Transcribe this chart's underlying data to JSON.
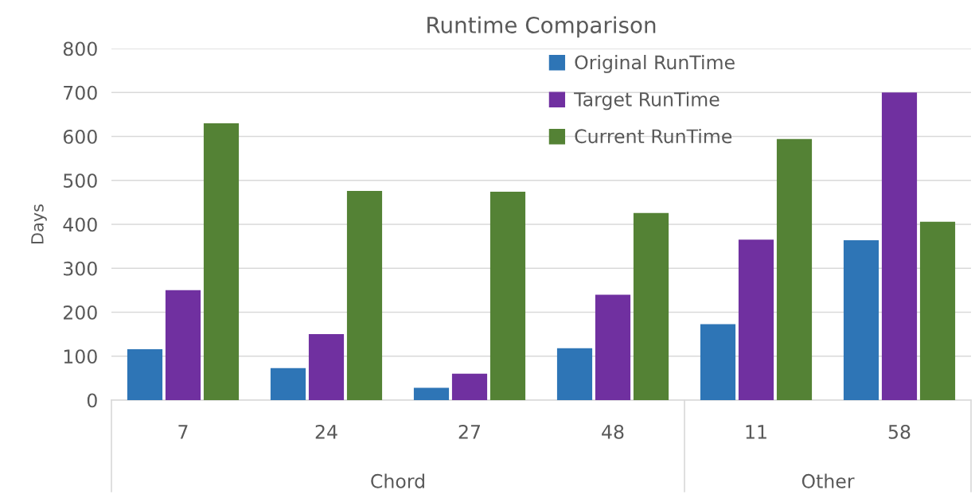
{
  "chart_data": {
    "type": "bar",
    "title": "Runtime Comparison",
    "ylabel": "Days",
    "categories": [
      "7",
      "24",
      "27",
      "48",
      "11",
      "58"
    ],
    "series": [
      {
        "name": "Original RunTime",
        "color": "#2e75b6",
        "values": [
          116,
          73,
          28,
          118,
          173,
          364
        ]
      },
      {
        "name": "Target RunTime",
        "color": "#7030a0",
        "values": [
          250,
          150,
          60,
          240,
          365,
          700
        ]
      },
      {
        "name": "Current RunTime",
        "color": "#548235",
        "values": [
          630,
          476,
          474,
          426,
          594,
          406
        ]
      }
    ],
    "ylim": [
      0,
      800
    ],
    "yticks": [
      0,
      100,
      200,
      300,
      400,
      500,
      600,
      700,
      800
    ],
    "grid": "y",
    "legend": "top",
    "annotations": [
      "Chord",
      "Other"
    ]
  }
}
